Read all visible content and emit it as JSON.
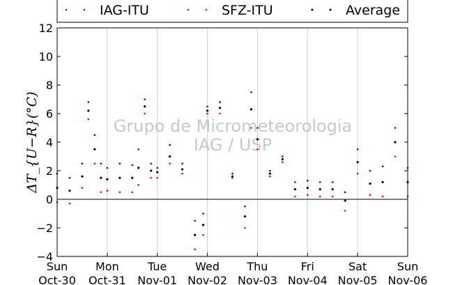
{
  "chart_data": {
    "type": "scatter",
    "ylabel": "ΔT_{U−R}(°C)",
    "ylim": [
      -4,
      12
    ],
    "yticks": [
      -4,
      -2,
      0,
      2,
      4,
      6,
      8,
      10,
      12
    ],
    "xlim_days": [
      0,
      7
    ],
    "x_ticks": [
      {
        "day": "Sun",
        "date": "Oct-30"
      },
      {
        "day": "Mon",
        "date": "Oct-31"
      },
      {
        "day": "Tue",
        "date": "Nov-01"
      },
      {
        "day": "Wed",
        "date": "Nov-02"
      },
      {
        "day": "Thu",
        "date": "Nov-03"
      },
      {
        "day": "Fri",
        "date": "Nov-04"
      },
      {
        "day": "Sat",
        "date": "Nov-05"
      },
      {
        "day": "Sun",
        "date": "Nov-06"
      }
    ],
    "grid": "vertical",
    "legend_position": "top",
    "watermark": [
      "Grupo de Micrometeorologia",
      "IAG / USP"
    ],
    "series": [
      {
        "name": "IAG-ITU",
        "color": "#0000ff",
        "x": [
          "Oct-30 00:00",
          "Oct-30 06:00",
          "Oct-30 12:00",
          "Oct-30 15:00",
          "Oct-30 18:00",
          "Oct-30 21:00",
          "Oct-31 00:00",
          "Oct-31 06:00",
          "Oct-31 12:00",
          "Oct-31 15:00",
          "Oct-31 18:00",
          "Oct-31 21:00",
          "Nov-01 00:00",
          "Nov-01 06:00",
          "Nov-01 12:00",
          "Nov-01 18:00",
          "Nov-01 22:00",
          "Nov-02 00:00",
          "Nov-02 06:00",
          "Nov-02 12:00",
          "Nov-02 18:00",
          "Nov-02 21:00",
          "Nov-03 00:00",
          "Nov-03 06:00",
          "Nov-03 12:00",
          "Nov-03 18:00",
          "Nov-04 00:00",
          "Nov-04 06:00",
          "Nov-04 12:00",
          "Nov-04 18:00",
          "Nov-05 00:00",
          "Nov-05 06:00",
          "Nov-05 12:00",
          "Nov-05 18:00",
          "Nov-06 00:00"
        ],
        "values": [
          1.8,
          1.5,
          2.5,
          6.8,
          4.5,
          2.5,
          2.2,
          2.5,
          2.4,
          3.5,
          7.0,
          2.5,
          2.2,
          3.8,
          2.5,
          -1.5,
          -1.0,
          6.5,
          6.8,
          1.8,
          -0.5,
          7.5,
          5.0,
          2.0,
          3.0,
          1.2,
          1.3,
          1.2,
          1.2,
          0.5,
          3.5,
          2.0,
          2.3,
          5.0,
          2.2
        ]
      },
      {
        "name": "SFZ-ITU",
        "color": "#ff0000",
        "x": [
          "Oct-30 00:00",
          "Oct-30 06:00",
          "Oct-30 12:00",
          "Oct-30 15:00",
          "Oct-30 18:00",
          "Oct-30 21:00",
          "Oct-31 00:00",
          "Oct-31 06:00",
          "Oct-31 12:00",
          "Oct-31 15:00",
          "Oct-31 18:00",
          "Oct-31 21:00",
          "Nov-01 00:00",
          "Nov-01 06:00",
          "Nov-01 12:00",
          "Nov-01 18:00",
          "Nov-01 22:00",
          "Nov-02 00:00",
          "Nov-02 06:00",
          "Nov-02 12:00",
          "Nov-02 18:00",
          "Nov-02 21:00",
          "Nov-03 00:00",
          "Nov-03 06:00",
          "Nov-03 12:00",
          "Nov-03 18:00",
          "Nov-04 00:00",
          "Nov-04 06:00",
          "Nov-04 12:00",
          "Nov-04 18:00",
          "Nov-05 00:00",
          "Nov-05 06:00",
          "Nov-05 12:00",
          "Nov-05 18:00",
          "Nov-06 00:00"
        ],
        "values": [
          -0.2,
          -0.3,
          0.8,
          5.6,
          2.5,
          0.5,
          0.6,
          0.5,
          0.5,
          1.0,
          6.0,
          1.5,
          1.5,
          2.5,
          1.8,
          -3.5,
          -2.5,
          6.0,
          6.0,
          1.5,
          -2.0,
          5.0,
          3.5,
          1.6,
          2.6,
          0.2,
          0.3,
          0.2,
          0.2,
          -0.8,
          1.8,
          0.3,
          0.2,
          3.0,
          0.2
        ]
      },
      {
        "name": "Average",
        "color": "#000000",
        "x": [
          "Oct-30 00:00",
          "Oct-30 06:00",
          "Oct-30 12:00",
          "Oct-30 15:00",
          "Oct-30 18:00",
          "Oct-30 21:00",
          "Oct-31 00:00",
          "Oct-31 06:00",
          "Oct-31 12:00",
          "Oct-31 15:00",
          "Oct-31 18:00",
          "Oct-31 21:00",
          "Nov-01 00:00",
          "Nov-01 06:00",
          "Nov-01 12:00",
          "Nov-01 18:00",
          "Nov-01 22:00",
          "Nov-02 00:00",
          "Nov-02 06:00",
          "Nov-02 12:00",
          "Nov-02 18:00",
          "Nov-02 21:00",
          "Nov-03 00:00",
          "Nov-03 06:00",
          "Nov-03 12:00",
          "Nov-03 18:00",
          "Nov-04 00:00",
          "Nov-04 06:00",
          "Nov-04 12:00",
          "Nov-04 18:00",
          "Nov-05 00:00",
          "Nov-05 06:00",
          "Nov-05 12:00",
          "Nov-05 18:00",
          "Nov-06 00:00"
        ],
        "values": [
          0.8,
          0.6,
          1.6,
          6.2,
          3.5,
          1.5,
          1.4,
          1.5,
          1.5,
          2.2,
          6.5,
          2.0,
          1.9,
          3.0,
          2.1,
          -2.5,
          -1.8,
          6.2,
          6.4,
          1.6,
          -1.2,
          6.3,
          4.2,
          1.8,
          2.8,
          0.7,
          0.8,
          0.7,
          0.7,
          -0.1,
          2.6,
          1.1,
          1.2,
          4.0,
          1.2
        ]
      }
    ]
  }
}
